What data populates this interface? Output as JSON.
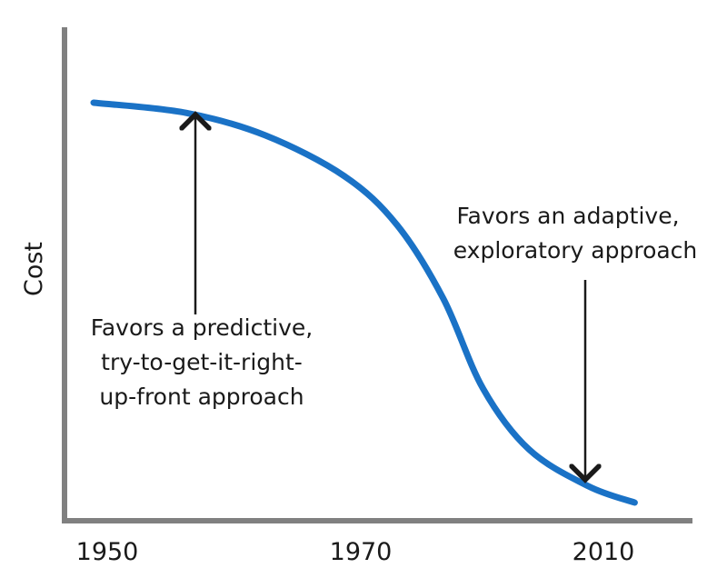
{
  "chart_data": {
    "type": "line",
    "title": "",
    "xlabel": "",
    "ylabel": "Cost",
    "x_ticks": [
      "1950",
      "1970",
      "2010"
    ],
    "series": [
      {
        "color": "#1a72c6",
        "points": [
          {
            "x": 0.04,
            "y": 0.98
          },
          {
            "x": 0.18,
            "y": 0.955
          },
          {
            "x": 0.3,
            "y": 0.9
          },
          {
            "x": 0.42,
            "y": 0.8
          },
          {
            "x": 0.5,
            "y": 0.68
          },
          {
            "x": 0.57,
            "y": 0.5
          },
          {
            "x": 0.63,
            "y": 0.28
          },
          {
            "x": 0.7,
            "y": 0.13
          },
          {
            "x": 0.79,
            "y": 0.04
          },
          {
            "x": 0.86,
            "y": 0.0
          }
        ]
      }
    ],
    "annotations": [
      {
        "lines": [
          "Favors a predictive,",
          "try-to-get-it-right-",
          "up-front approach"
        ],
        "arrow": "up"
      },
      {
        "lines": [
          "Favors an adaptive,",
          "exploratory approach"
        ],
        "arrow": "down"
      }
    ],
    "grid": false,
    "legend": "none",
    "axis_color": "#808080",
    "text_color": "#1a1a1a"
  }
}
